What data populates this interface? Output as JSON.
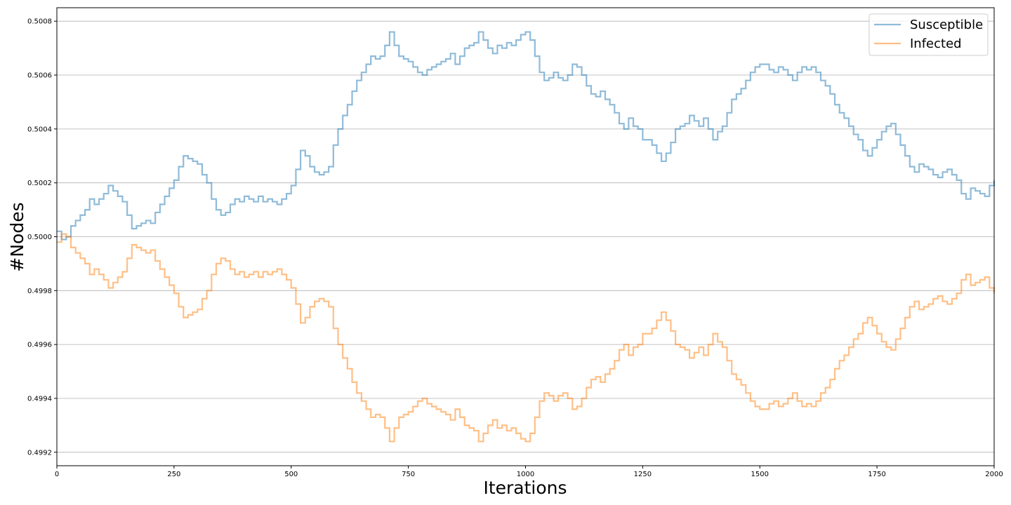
{
  "chart_data": {
    "type": "line",
    "title": "",
    "xlabel": "Iterations",
    "ylabel": "#Nodes",
    "xlim": [
      0,
      2000
    ],
    "ylim": [
      0.49915,
      0.50085
    ],
    "x_ticks": [
      0,
      250,
      500,
      750,
      1000,
      1250,
      1500,
      1750,
      2000
    ],
    "x_tick_labels": [
      "0",
      "250",
      "500",
      "750",
      "1000",
      "1250",
      "1500",
      "1750",
      "2000"
    ],
    "y_ticks": [
      0.4992,
      0.4994,
      0.4996,
      0.4998,
      0.5,
      0.5002,
      0.5004,
      0.5006,
      0.5008
    ],
    "y_tick_labels": [
      "0.4992",
      "0.4994",
      "0.4996",
      "0.4998",
      "0.5000",
      "0.5002",
      "0.5004",
      "0.5006",
      "0.5008"
    ],
    "grid": "horizontal",
    "legend_position": "top-right",
    "x": [
      0,
      10,
      20,
      30,
      40,
      50,
      60,
      70,
      80,
      90,
      100,
      110,
      120,
      130,
      140,
      150,
      160,
      170,
      180,
      190,
      200,
      210,
      220,
      230,
      240,
      250,
      260,
      270,
      280,
      290,
      300,
      310,
      320,
      330,
      340,
      350,
      360,
      370,
      380,
      390,
      400,
      410,
      420,
      430,
      440,
      450,
      460,
      470,
      480,
      490,
      500,
      510,
      520,
      530,
      540,
      550,
      560,
      570,
      580,
      590,
      600,
      610,
      620,
      630,
      640,
      650,
      660,
      670,
      680,
      690,
      700,
      710,
      720,
      730,
      740,
      750,
      760,
      770,
      780,
      790,
      800,
      810,
      820,
      830,
      840,
      850,
      860,
      870,
      880,
      890,
      900,
      910,
      920,
      930,
      940,
      950,
      960,
      970,
      980,
      990,
      1000,
      1010,
      1020,
      1030,
      1040,
      1050,
      1060,
      1070,
      1080,
      1090,
      1100,
      1110,
      1120,
      1130,
      1140,
      1150,
      1160,
      1170,
      1180,
      1190,
      1200,
      1210,
      1220,
      1230,
      1240,
      1250,
      1260,
      1270,
      1280,
      1290,
      1300,
      1310,
      1320,
      1330,
      1340,
      1350,
      1360,
      1370,
      1380,
      1390,
      1400,
      1410,
      1420,
      1430,
      1440,
      1450,
      1460,
      1470,
      1480,
      1490,
      1500,
      1510,
      1520,
      1530,
      1540,
      1550,
      1560,
      1570,
      1580,
      1590,
      1600,
      1610,
      1620,
      1630,
      1640,
      1650,
      1660,
      1670,
      1680,
      1690,
      1700,
      1710,
      1720,
      1730,
      1740,
      1750,
      1760,
      1770,
      1780,
      1790,
      1800,
      1810,
      1820,
      1830,
      1840,
      1850,
      1860,
      1870,
      1880,
      1890,
      1900,
      1910,
      1920,
      1930,
      1940,
      1950,
      1960,
      1970,
      1980,
      1990,
      2000
    ],
    "series": [
      {
        "name": "Susceptible",
        "color": "#1f77b4",
        "opacity": 0.5,
        "values": [
          0.50002,
          0.49999,
          0.5,
          0.50004,
          0.50006,
          0.50008,
          0.5001,
          0.50014,
          0.50012,
          0.50014,
          0.50016,
          0.50019,
          0.50017,
          0.50015,
          0.50013,
          0.50008,
          0.50003,
          0.50004,
          0.50005,
          0.50006,
          0.50005,
          0.50009,
          0.50012,
          0.50015,
          0.50018,
          0.50021,
          0.50026,
          0.5003,
          0.50029,
          0.50028,
          0.50027,
          0.50023,
          0.5002,
          0.50014,
          0.5001,
          0.50008,
          0.50009,
          0.50012,
          0.50014,
          0.50013,
          0.50015,
          0.50014,
          0.50013,
          0.50015,
          0.50013,
          0.50014,
          0.50013,
          0.50012,
          0.50014,
          0.50016,
          0.50019,
          0.50025,
          0.50032,
          0.5003,
          0.50026,
          0.50024,
          0.50023,
          0.50024,
          0.50026,
          0.50034,
          0.5004,
          0.50045,
          0.50049,
          0.50054,
          0.50058,
          0.50061,
          0.50064,
          0.50067,
          0.50066,
          0.50067,
          0.50071,
          0.50076,
          0.50071,
          0.50067,
          0.50066,
          0.50065,
          0.50063,
          0.50061,
          0.5006,
          0.50062,
          0.50063,
          0.50064,
          0.50065,
          0.50066,
          0.50068,
          0.50064,
          0.50067,
          0.5007,
          0.50071,
          0.50072,
          0.50076,
          0.50073,
          0.5007,
          0.50068,
          0.50071,
          0.5007,
          0.50072,
          0.50071,
          0.50073,
          0.50075,
          0.50076,
          0.50073,
          0.50067,
          0.50061,
          0.50058,
          0.50059,
          0.50061,
          0.50059,
          0.50058,
          0.5006,
          0.50064,
          0.50063,
          0.5006,
          0.50056,
          0.50053,
          0.50052,
          0.50054,
          0.50051,
          0.50049,
          0.50046,
          0.50042,
          0.5004,
          0.50044,
          0.50041,
          0.5004,
          0.50036,
          0.50036,
          0.50034,
          0.50031,
          0.50028,
          0.50031,
          0.50035,
          0.5004,
          0.50041,
          0.50042,
          0.50045,
          0.50043,
          0.50041,
          0.50044,
          0.5004,
          0.50036,
          0.50039,
          0.50041,
          0.50046,
          0.50051,
          0.50053,
          0.50055,
          0.50058,
          0.50061,
          0.50063,
          0.50064,
          0.50064,
          0.50062,
          0.50061,
          0.50063,
          0.50062,
          0.5006,
          0.50058,
          0.50061,
          0.50063,
          0.50062,
          0.50063,
          0.50061,
          0.50058,
          0.50056,
          0.50053,
          0.50049,
          0.50046,
          0.50044,
          0.50041,
          0.50038,
          0.50036,
          0.50032,
          0.5003,
          0.50033,
          0.50036,
          0.50039,
          0.50041,
          0.50042,
          0.50038,
          0.50034,
          0.5003,
          0.50026,
          0.50024,
          0.50027,
          0.50026,
          0.50025,
          0.50023,
          0.50022,
          0.50024,
          0.50025,
          0.50023,
          0.50021,
          0.50016,
          0.50014,
          0.50018,
          0.50017,
          0.50016,
          0.50015,
          0.50019,
          0.50021
        ]
      },
      {
        "name": "Infected",
        "color": "#ff7f0e",
        "opacity": 0.5,
        "values": [
          0.49998,
          0.50001,
          0.5,
          0.49996,
          0.49994,
          0.49992,
          0.4999,
          0.49986,
          0.49988,
          0.49986,
          0.49984,
          0.49981,
          0.49983,
          0.49985,
          0.49987,
          0.49992,
          0.49997,
          0.49996,
          0.49995,
          0.49994,
          0.49995,
          0.49991,
          0.49988,
          0.49985,
          0.49982,
          0.49979,
          0.49974,
          0.4997,
          0.49971,
          0.49972,
          0.49973,
          0.49977,
          0.4998,
          0.49986,
          0.4999,
          0.49992,
          0.49991,
          0.49988,
          0.49986,
          0.49987,
          0.49985,
          0.49986,
          0.49987,
          0.49985,
          0.49987,
          0.49986,
          0.49987,
          0.49988,
          0.49986,
          0.49984,
          0.49981,
          0.49975,
          0.49968,
          0.4997,
          0.49974,
          0.49976,
          0.49977,
          0.49976,
          0.49974,
          0.49966,
          0.4996,
          0.49955,
          0.49951,
          0.49946,
          0.49942,
          0.49939,
          0.49936,
          0.49933,
          0.49934,
          0.49933,
          0.49929,
          0.49924,
          0.49929,
          0.49933,
          0.49934,
          0.49935,
          0.49937,
          0.49939,
          0.4994,
          0.49938,
          0.49937,
          0.49936,
          0.49935,
          0.49934,
          0.49932,
          0.49936,
          0.49933,
          0.4993,
          0.49929,
          0.49928,
          0.49924,
          0.49927,
          0.4993,
          0.49932,
          0.49929,
          0.4993,
          0.49928,
          0.49929,
          0.49927,
          0.49925,
          0.49924,
          0.49927,
          0.49933,
          0.49939,
          0.49942,
          0.49941,
          0.49939,
          0.49941,
          0.49942,
          0.4994,
          0.49936,
          0.49937,
          0.4994,
          0.49944,
          0.49947,
          0.49948,
          0.49946,
          0.49949,
          0.49951,
          0.49954,
          0.49958,
          0.4996,
          0.49956,
          0.49959,
          0.4996,
          0.49964,
          0.49964,
          0.49966,
          0.49969,
          0.49972,
          0.49969,
          0.49965,
          0.4996,
          0.49959,
          0.49958,
          0.49955,
          0.49957,
          0.49959,
          0.49956,
          0.4996,
          0.49964,
          0.49961,
          0.49959,
          0.49954,
          0.49949,
          0.49947,
          0.49945,
          0.49942,
          0.49939,
          0.49937,
          0.49936,
          0.49936,
          0.49938,
          0.49939,
          0.49937,
          0.49938,
          0.4994,
          0.49942,
          0.49939,
          0.49937,
          0.49938,
          0.49937,
          0.49939,
          0.49942,
          0.49944,
          0.49947,
          0.49951,
          0.49954,
          0.49956,
          0.49959,
          0.49962,
          0.49964,
          0.49968,
          0.4997,
          0.49967,
          0.49964,
          0.49961,
          0.49959,
          0.49958,
          0.49962,
          0.49966,
          0.4997,
          0.49974,
          0.49976,
          0.49973,
          0.49974,
          0.49975,
          0.49977,
          0.49978,
          0.49976,
          0.49975,
          0.49977,
          0.49979,
          0.49984,
          0.49986,
          0.49982,
          0.49983,
          0.49984,
          0.49985,
          0.49981,
          0.49979
        ]
      }
    ]
  }
}
